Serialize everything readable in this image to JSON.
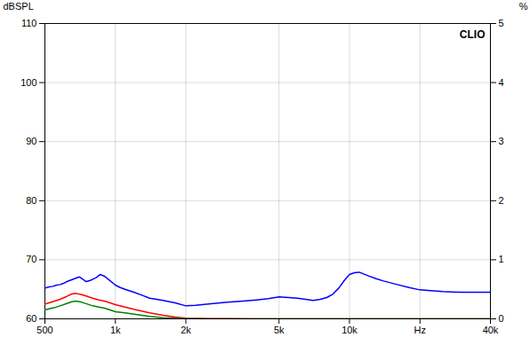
{
  "chart_data": {
    "type": "line",
    "log": "x",
    "grid": true,
    "xlim": [
      500,
      40000
    ],
    "xticks": [
      500,
      {
        "value": 1000,
        "label": "1k"
      },
      {
        "value": 2000,
        "label": "2k"
      },
      {
        "value": 5000,
        "label": "5k"
      },
      {
        "value": 10000,
        "label": "10k"
      },
      {
        "value": 20000,
        "label": "Hz"
      },
      {
        "value": 40000,
        "label": "40k"
      }
    ],
    "ylabel": "dBSPL",
    "ylim": [
      60,
      110
    ],
    "yticks": [
      60,
      70,
      80,
      90,
      100,
      110
    ],
    "y2label": "%",
    "y2lim": [
      0,
      5
    ],
    "y2ticks": [
      0,
      1,
      2,
      3,
      4,
      5
    ],
    "annotations": [
      "CLIO"
    ],
    "series": [
      {
        "color": "#0000ff",
        "x": [
          500,
          520,
          540,
          560,
          580,
          600,
          620,
          650,
          680,
          700,
          720,
          750,
          780,
          800,
          830,
          860,
          900,
          940,
          980,
          1000,
          1050,
          1100,
          1200,
          1300,
          1400,
          1500,
          1600,
          1800,
          2000,
          2200,
          2500,
          3000,
          3500,
          4000,
          4500,
          5000,
          5500,
          6000,
          6500,
          7000,
          7500,
          8000,
          8500,
          9000,
          9500,
          10000,
          10500,
          11000,
          12000,
          13000,
          14000,
          16000,
          18000,
          20000,
          25000,
          30000,
          35000,
          40000
        ],
        "values": [
          65.2,
          65.4,
          65.5,
          65.7,
          65.8,
          66.0,
          66.3,
          66.6,
          66.9,
          67.1,
          66.8,
          66.3,
          66.5,
          66.7,
          67.0,
          67.5,
          67.2,
          66.6,
          66.0,
          65.7,
          65.3,
          65.0,
          64.5,
          64.0,
          63.5,
          63.3,
          63.1,
          62.7,
          62.2,
          62.3,
          62.5,
          62.8,
          63.0,
          63.2,
          63.4,
          63.7,
          63.6,
          63.5,
          63.3,
          63.1,
          63.3,
          63.6,
          64.2,
          65.2,
          66.5,
          67.5,
          67.8,
          67.9,
          67.3,
          66.8,
          66.4,
          65.8,
          65.3,
          64.9,
          64.6,
          64.5,
          64.5,
          64.5
        ]
      },
      {
        "color": "#ff0000",
        "x": [
          500,
          520,
          550,
          580,
          620,
          650,
          680,
          720,
          760,
          800,
          850,
          900,
          950,
          1000,
          1100,
          1200,
          1400,
          1600,
          1800,
          2000,
          2500,
          3000,
          4000,
          5000,
          7000,
          10000,
          15000,
          20000,
          30000,
          40000
        ],
        "values": [
          62.5,
          62.7,
          63.0,
          63.3,
          63.8,
          64.2,
          64.3,
          64.1,
          63.8,
          63.5,
          63.2,
          63.0,
          62.7,
          62.4,
          62.0,
          61.6,
          61.0,
          60.6,
          60.3,
          60.1,
          60.05,
          60.02,
          60.0,
          60.0,
          60.0,
          60.0,
          60.0,
          60.0,
          60.0,
          60.0
        ]
      },
      {
        "color": "#008000",
        "x": [
          500,
          520,
          550,
          580,
          620,
          650,
          680,
          720,
          760,
          800,
          850,
          900,
          950,
          1000,
          1100,
          1200,
          1400,
          1600,
          1800,
          2000,
          2500,
          3000,
          4000,
          5000,
          7000,
          10000,
          15000,
          20000,
          30000,
          40000
        ],
        "values": [
          61.5,
          61.7,
          61.9,
          62.2,
          62.6,
          62.9,
          63.0,
          62.8,
          62.5,
          62.2,
          62.0,
          61.8,
          61.5,
          61.2,
          61.0,
          60.8,
          60.4,
          60.2,
          60.1,
          60.05,
          60.0,
          60.0,
          60.0,
          60.0,
          60.0,
          60.0,
          60.0,
          60.0,
          60.0,
          60.0
        ]
      }
    ]
  }
}
